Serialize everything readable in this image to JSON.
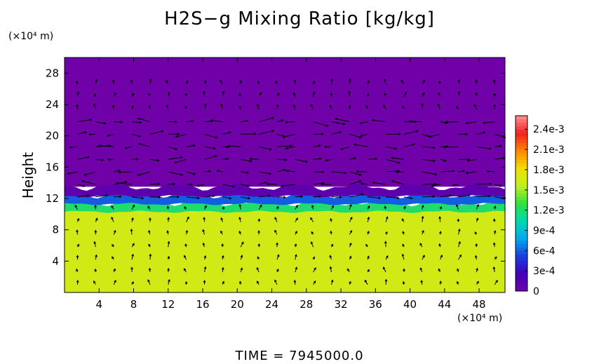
{
  "chart_data": {
    "type": "heatmap",
    "title": "H2S−g Mixing Ratio [kg/kg]",
    "ylabel": "Height",
    "xlabel": "",
    "x_unit_label": "(×10⁴ m)",
    "y_unit_label": "(×10⁴ m)",
    "x_ticks": [
      "4",
      "8",
      "12",
      "16",
      "20",
      "24",
      "28",
      "32",
      "36",
      "40",
      "44",
      "48"
    ],
    "y_ticks": [
      "4",
      "8",
      "12",
      "16",
      "20",
      "24",
      "28"
    ],
    "xlim": [
      0,
      51
    ],
    "ylim": [
      0,
      30
    ],
    "fields": {
      "lower_layer": {
        "y_range": [
          0,
          10.5
        ],
        "value": 0.00165
      },
      "transition_band": {
        "y_range": [
          10.5,
          13.5
        ],
        "values": [
          0.0012,
          0.0006,
          0.0001
        ]
      },
      "upper_layer": {
        "y_range": [
          13.5,
          30
        ],
        "value": 0
      }
    },
    "overlay": "wind vectors (arrows)",
    "colorbar": {
      "labels": [
        "0",
        "3e-4",
        "6e-4",
        "9e-4",
        "1.2e-3",
        "1.5e-3",
        "1.8e-3",
        "2.1e-3",
        "2.4e-3"
      ],
      "min": 0,
      "max": 0.0026,
      "colors": [
        "#7000a8",
        "#4400b8",
        "#1a3cdc",
        "#00a8f0",
        "#00d8b0",
        "#30e040",
        "#c0f020",
        "#f0e000",
        "#ff8800",
        "#f02020",
        "#ff9090"
      ]
    },
    "time_label": "TIME = 7945000.0"
  }
}
